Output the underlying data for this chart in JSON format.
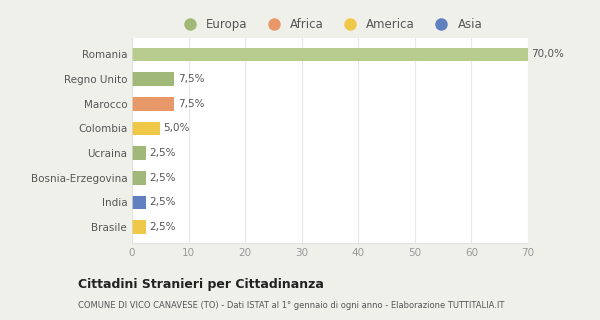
{
  "categories": [
    "Brasile",
    "India",
    "Bosnia-Erzegovina",
    "Ucraina",
    "Colombia",
    "Marocco",
    "Regno Unito",
    "Romania"
  ],
  "values": [
    2.5,
    2.5,
    2.5,
    2.5,
    5.0,
    7.5,
    7.5,
    70.0
  ],
  "colors": [
    "#f0c848",
    "#6080c0",
    "#a0b878",
    "#a0b878",
    "#f0c848",
    "#e89868",
    "#a0b878",
    "#b8cc90"
  ],
  "labels": [
    "2,5%",
    "2,5%",
    "2,5%",
    "2,5%",
    "5,0%",
    "7,5%",
    "7,5%",
    "70,0%"
  ],
  "legend_entries": [
    "Europa",
    "Africa",
    "America",
    "Asia"
  ],
  "legend_colors": [
    "#a0b878",
    "#e89868",
    "#f0c848",
    "#6080c0"
  ],
  "xlim": [
    0,
    70
  ],
  "xticks": [
    0,
    10,
    20,
    30,
    40,
    50,
    60,
    70
  ],
  "title": "Cittadini Stranieri per Cittadinanza",
  "subtitle": "COMUNE DI VICO CANAVESE (TO) - Dati ISTAT al 1° gennaio di ogni anno - Elaborazione TUTTITALIA.IT",
  "bg_color": "#f0f0eb",
  "plot_bg_color": "#ffffff",
  "bar_height": 0.55
}
